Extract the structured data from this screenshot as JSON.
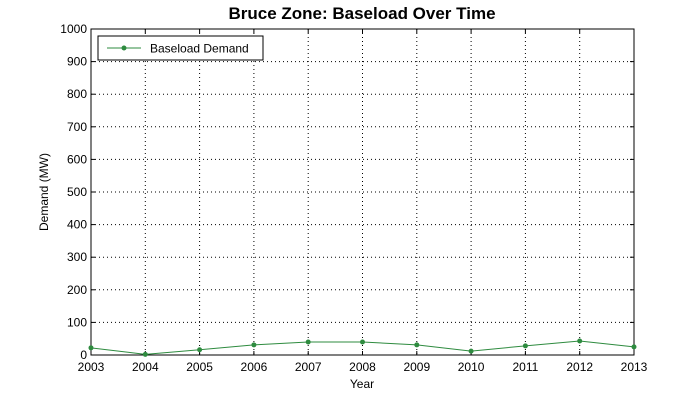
{
  "chart_data": {
    "type": "line",
    "title": "Bruce Zone: Baseload Over Time",
    "xlabel": "Year",
    "ylabel": "Demand (MW)",
    "x": [
      2003,
      2004,
      2005,
      2006,
      2007,
      2008,
      2009,
      2010,
      2011,
      2012,
      2013
    ],
    "xlim": [
      2003,
      2013
    ],
    "ylim": [
      0,
      1000
    ],
    "y_ticks": [
      0,
      100,
      200,
      300,
      400,
      500,
      600,
      700,
      800,
      900,
      1000
    ],
    "grid": true,
    "legend_position": "top-left",
    "series": [
      {
        "name": "Baseload Demand",
        "color": "#2e8b3f",
        "values": [
          22,
          2,
          16,
          31,
          40,
          40,
          31,
          12,
          28,
          43,
          25
        ]
      }
    ]
  }
}
